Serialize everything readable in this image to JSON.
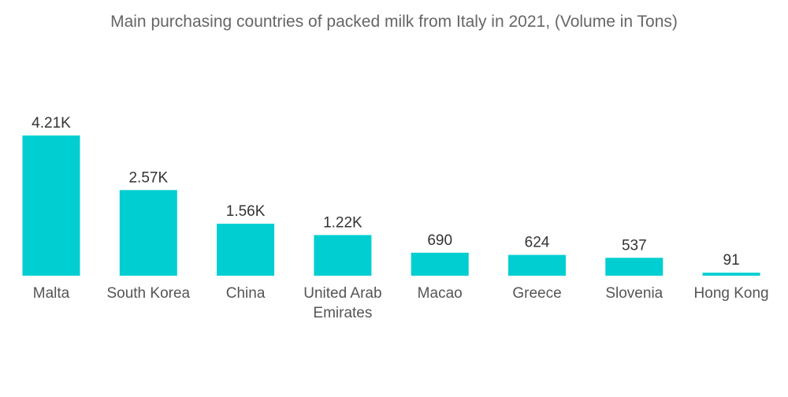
{
  "chart_data": {
    "type": "bar",
    "title": "Main purchasing countries of packed milk from Italy in 2021, (Volume in Tons)",
    "categories": [
      [
        "Malta"
      ],
      [
        "South Korea"
      ],
      [
        "China"
      ],
      [
        "United Arab",
        "Emirates"
      ],
      [
        "Macao"
      ],
      [
        "Greece"
      ],
      [
        "Slovenia"
      ],
      [
        "Hong Kong"
      ]
    ],
    "values": [
      4210,
      2570,
      1560,
      1220,
      690,
      624,
      537,
      91
    ],
    "data_labels": [
      "4.21K",
      "2.57K",
      "1.56K",
      "1.22K",
      "690",
      "624",
      "537",
      "91"
    ],
    "bar_color": "#00CED1",
    "grid": false,
    "legend": "none"
  }
}
